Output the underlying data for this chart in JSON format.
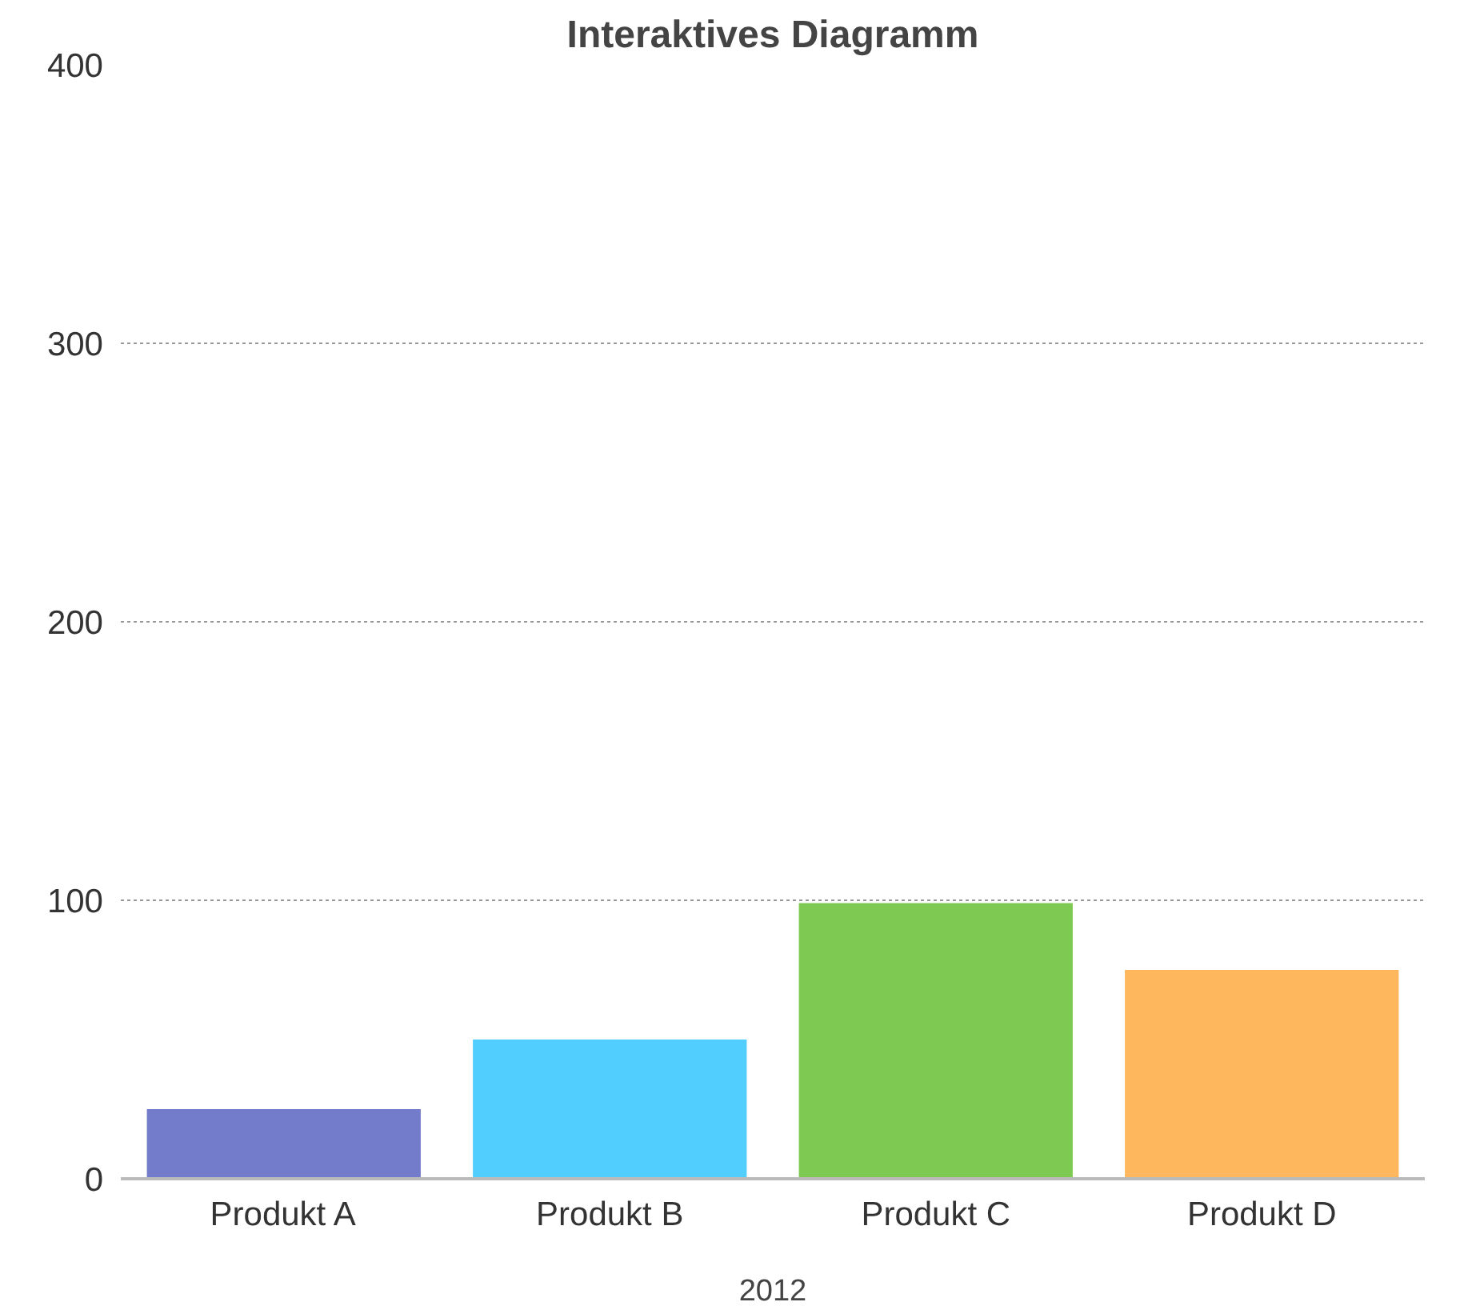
{
  "chart_data": {
    "type": "bar",
    "title": "Interaktives Diagramm",
    "xlabel": "2012",
    "categories": [
      "Produkt A",
      "Produkt B",
      "Produkt C",
      "Produkt D"
    ],
    "values": [
      25,
      50,
      99,
      75
    ],
    "colors": [
      "#737bcb",
      "#52cefe",
      "#7dc952",
      "#feb75c"
    ],
    "ylim": [
      0,
      400
    ],
    "yticks": [
      0,
      100,
      200,
      300,
      400
    ],
    "grid": "y"
  }
}
